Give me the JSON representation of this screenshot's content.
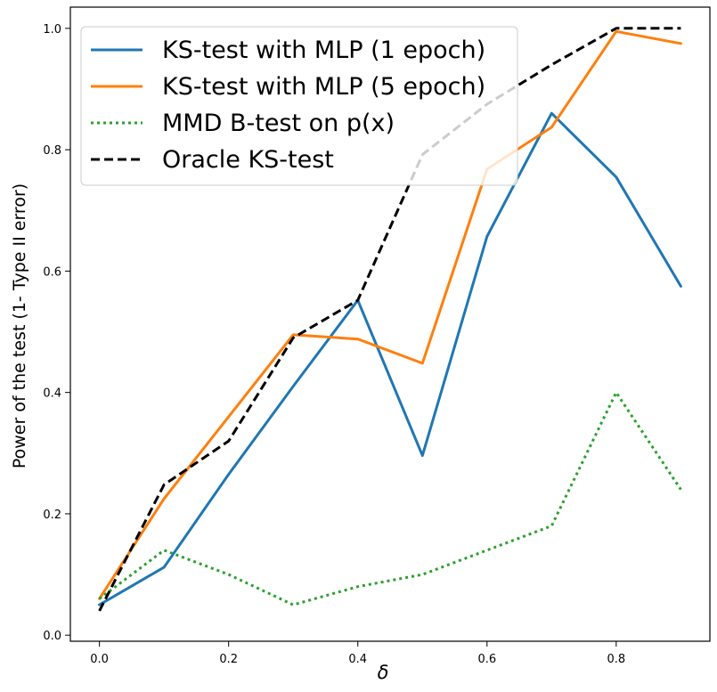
{
  "chart_data": {
    "type": "line",
    "title": "",
    "xlabel": "δ",
    "ylabel": "Power of the test (1- Type II error)",
    "xlim": [
      -0.045,
      0.945
    ],
    "ylim": [
      -0.01,
      1.035
    ],
    "xticks": [
      0.0,
      0.2,
      0.4,
      0.6,
      0.8
    ],
    "xtick_labels": [
      "0.0",
      "0.2",
      "0.4",
      "0.6",
      "0.8"
    ],
    "yticks": [
      0.0,
      0.2,
      0.4,
      0.6,
      0.8,
      1.0
    ],
    "ytick_labels": [
      "0.0",
      "0.2",
      "0.4",
      "0.6",
      "0.8",
      "1.0"
    ],
    "grid": false,
    "legend_position": "top-left",
    "x": [
      0.0,
      0.1,
      0.2,
      0.3,
      0.4,
      0.5,
      0.6,
      0.7,
      0.8,
      0.9
    ],
    "series": [
      {
        "name": "KS-test with MLP (1 epoch)",
        "color": "#1f77b4",
        "style": "solid",
        "values": [
          0.05,
          0.112,
          0.265,
          0.41,
          0.552,
          0.296,
          0.657,
          0.86,
          0.755,
          0.575
        ]
      },
      {
        "name": "KS-test with MLP (5 epoch)",
        "color": "#ff7f0e",
        "style": "solid",
        "values": [
          0.06,
          0.225,
          0.36,
          0.495,
          0.488,
          0.448,
          0.768,
          0.837,
          0.995,
          0.975
        ]
      },
      {
        "name": "MMD B-test on p(x)",
        "color": "#2ca02c",
        "style": "dotted",
        "values": [
          0.06,
          0.14,
          0.1,
          0.05,
          0.08,
          0.1,
          0.14,
          0.18,
          0.4,
          0.24
        ]
      },
      {
        "name": "Oracle KS-test",
        "color": "#000000",
        "style": "dashed",
        "values": [
          0.04,
          0.248,
          0.32,
          0.49,
          0.552,
          0.792,
          0.875,
          0.94,
          1.0,
          1.0
        ]
      }
    ]
  }
}
